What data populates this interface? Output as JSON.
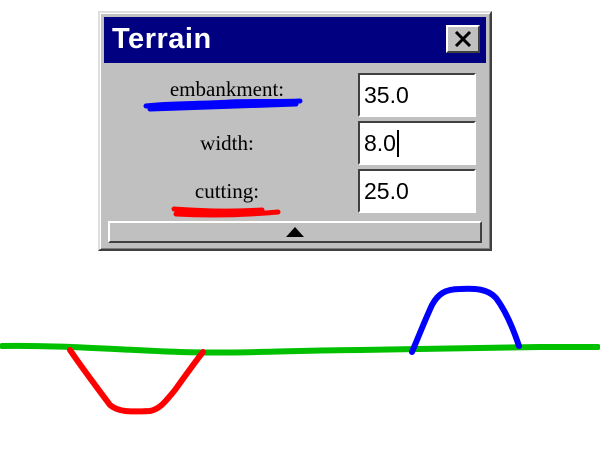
{
  "window": {
    "title": "Terrain",
    "close_icon": "close-x-icon"
  },
  "fields": {
    "embankment": {
      "label": "embankment:",
      "value": "35.0",
      "underline_color": "#0000ff"
    },
    "width": {
      "label": "width:",
      "value": "8.0"
    },
    "cutting": {
      "label": "cutting:",
      "value": "25.0",
      "underline_color": "#ff0000"
    }
  },
  "expand_button": {
    "icon": "triangle-up-icon"
  },
  "sketch": {
    "ground_color": "#00c000",
    "embankment_color": "#0000ff",
    "cutting_color": "#ff0000"
  }
}
